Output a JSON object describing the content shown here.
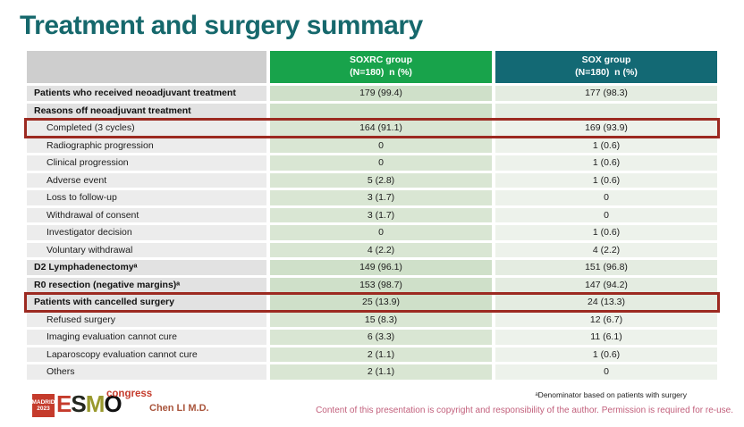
{
  "slide": {
    "title": "Treatment and surgery summary"
  },
  "colors": {
    "title": "#16686c",
    "green": "#18a34b",
    "teal": "#136974",
    "redbox": "#9c2a21",
    "logored": "#c53b2c",
    "author": "#a9553c",
    "copyright": "#c2607c"
  },
  "table": {
    "header": {
      "soxrc": {
        "name": "SOXRC group",
        "sub": "(N=180)  n (%)"
      },
      "sox": {
        "name": "SOX group",
        "sub": "(N=180)  n (%)"
      }
    },
    "rows": [
      {
        "label": "Patients who received neoadjuvant treatment",
        "soxrc": "179 (99.4)",
        "sox": "177 (98.3)",
        "bold": true,
        "indent": false,
        "highlight": false
      },
      {
        "label": "Reasons off neoadjuvant treatment",
        "soxrc": "",
        "sox": "",
        "bold": true,
        "indent": false,
        "highlight": false
      },
      {
        "label": "Completed (3 cycles)",
        "soxrc": "164 (91.1)",
        "sox": "169 (93.9)",
        "bold": false,
        "indent": true,
        "highlight": true
      },
      {
        "label": "Radiographic progression",
        "soxrc": "0",
        "sox": "1 (0.6)",
        "bold": false,
        "indent": true,
        "highlight": false
      },
      {
        "label": "Clinical progression",
        "soxrc": "0",
        "sox": "1 (0.6)",
        "bold": false,
        "indent": true,
        "highlight": false
      },
      {
        "label": "Adverse event",
        "soxrc": "5 (2.8)",
        "sox": "1 (0.6)",
        "bold": false,
        "indent": true,
        "highlight": false
      },
      {
        "label": "Loss to follow-up",
        "soxrc": "3 (1.7)",
        "sox": "0",
        "bold": false,
        "indent": true,
        "highlight": false
      },
      {
        "label": "Withdrawal of consent",
        "soxrc": "3 (1.7)",
        "sox": "0",
        "bold": false,
        "indent": true,
        "highlight": false
      },
      {
        "label": "Investigator decision",
        "soxrc": "0",
        "sox": "1 (0.6)",
        "bold": false,
        "indent": true,
        "highlight": false
      },
      {
        "label": "Voluntary withdrawal",
        "soxrc": "4 (2.2)",
        "sox": "4 (2.2)",
        "bold": false,
        "indent": true,
        "highlight": false
      },
      {
        "label": "D2 Lymphadenectomyᵃ",
        "soxrc": "149 (96.1)",
        "sox": "151 (96.8)",
        "bold": true,
        "indent": false,
        "highlight": false
      },
      {
        "label": "R0 resection (negative margins)ᵃ",
        "soxrc": "153 (98.7)",
        "sox": "147 (94.2)",
        "bold": true,
        "indent": false,
        "highlight": false
      },
      {
        "label": "Patients with cancelled surgery",
        "soxrc": "25 (13.9)",
        "sox": "24 (13.3)",
        "bold": true,
        "indent": false,
        "highlight": true
      },
      {
        "label": "Refused surgery",
        "soxrc": "15 (8.3)",
        "sox": "12 (6.7)",
        "bold": false,
        "indent": true,
        "highlight": false
      },
      {
        "label": "Imaging evaluation cannot cure",
        "soxrc": "6 (3.3)",
        "sox": "11 (6.1)",
        "bold": false,
        "indent": true,
        "highlight": false
      },
      {
        "label": "Laparoscopy evaluation cannot cure",
        "soxrc": "2 (1.1)",
        "sox": "1 (0.6)",
        "bold": false,
        "indent": true,
        "highlight": false
      },
      {
        "label": "Others",
        "soxrc": "2 (1.1)",
        "sox": "0",
        "bold": false,
        "indent": true,
        "highlight": false
      }
    ]
  },
  "footer": {
    "logo": {
      "location": "MADRID",
      "year": "2023",
      "letters": [
        {
          "char": "E",
          "color": "#c53b2c"
        },
        {
          "char": "S",
          "color": "#23271f"
        },
        {
          "char": "M",
          "color": "#99992d"
        },
        {
          "char": "O",
          "color": "#101010"
        }
      ],
      "congress": "congress"
    },
    "author": "Chen LI M.D.",
    "footnote": "ᵃDenominator based on patients with surgery",
    "copyright": "Content of this presentation is copyright and responsibility of the author. Permission is required for re-use."
  }
}
